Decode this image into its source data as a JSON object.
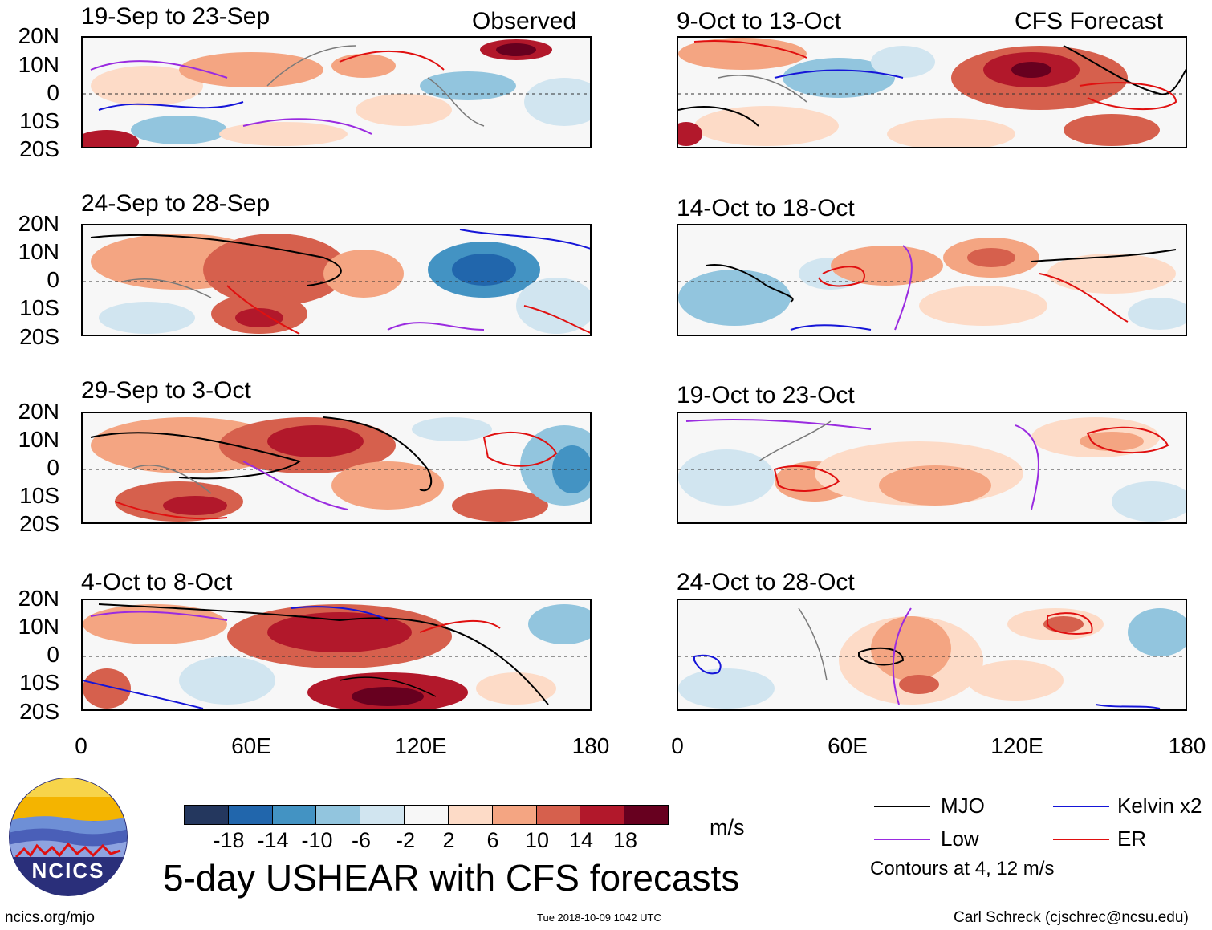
{
  "panels_left": [
    {
      "title": "19-Sep to 23-Sep",
      "label": "Observed"
    },
    {
      "title": "24-Sep to 28-Sep",
      "label": ""
    },
    {
      "title": "29-Sep to 3-Oct",
      "label": ""
    },
    {
      "title": "4-Oct to 8-Oct",
      "label": ""
    }
  ],
  "panels_right": [
    {
      "title": "9-Oct to 13-Oct",
      "label": "CFS Forecast"
    },
    {
      "title": "14-Oct to 18-Oct",
      "label": ""
    },
    {
      "title": "19-Oct to 23-Oct",
      "label": ""
    },
    {
      "title": "24-Oct to 28-Oct",
      "label": ""
    }
  ],
  "y_ticks": [
    "20N",
    "10N",
    "0",
    "10S",
    "20S"
  ],
  "x_ticks": [
    "0",
    "60E",
    "120E",
    "180"
  ],
  "colorbar": {
    "labels": [
      "-18",
      "-14",
      "-10",
      "-6",
      "-2",
      "2",
      "6",
      "10",
      "14",
      "18"
    ],
    "colors": [
      "#24375e",
      "#2166ac",
      "#4393c3",
      "#92c5de",
      "#d1e5f0",
      "#f7f7f7",
      "#fddbc7",
      "#f4a582",
      "#d6604d",
      "#b2182b",
      "#67001f"
    ],
    "units": "m/s"
  },
  "legend": {
    "items": [
      {
        "label": "MJO",
        "color": "#000000"
      },
      {
        "label": "Kelvin x2",
        "color": "#1515d8"
      },
      {
        "label": "Low",
        "color": "#9a2be0"
      },
      {
        "label": "ER",
        "color": "#e01010"
      }
    ],
    "note": "Contours at 4, 12 m/s"
  },
  "logo_text": "NCICS",
  "main_title": "5-day USHEAR with CFS forecasts",
  "footer": {
    "left": "ncics.org/mjo",
    "center": "Tue 2018-10-09 1042 UTC",
    "right": "Carl Schreck (cjschrec@ncsu.edu)"
  }
}
